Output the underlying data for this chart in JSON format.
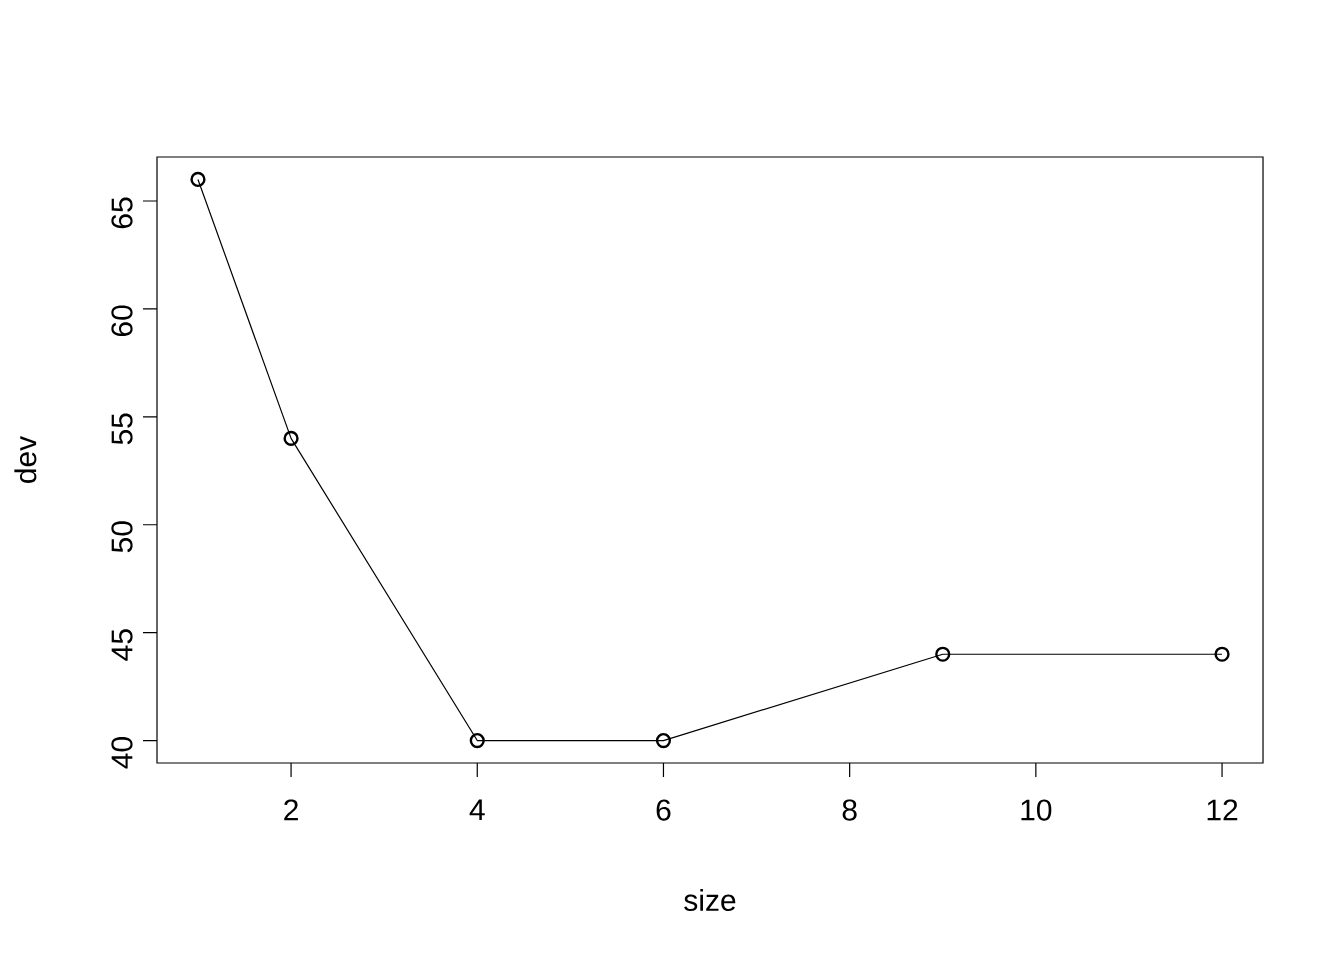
{
  "chart_data": {
    "type": "line",
    "xlabel": "size",
    "ylabel": "dev",
    "x": [
      1,
      2,
      4,
      6,
      9,
      12
    ],
    "series": [
      {
        "color": "#000000",
        "values": [
          66,
          54,
          40,
          40,
          44,
          44
        ]
      }
    ],
    "xlim": [
      0.56,
      12.44
    ],
    "ylim": [
      38.96,
      67.04
    ],
    "xticks": [
      2,
      4,
      6,
      8,
      10,
      12
    ],
    "yticks": [
      40,
      45,
      50,
      55,
      60,
      65
    ],
    "marker": "circle"
  }
}
